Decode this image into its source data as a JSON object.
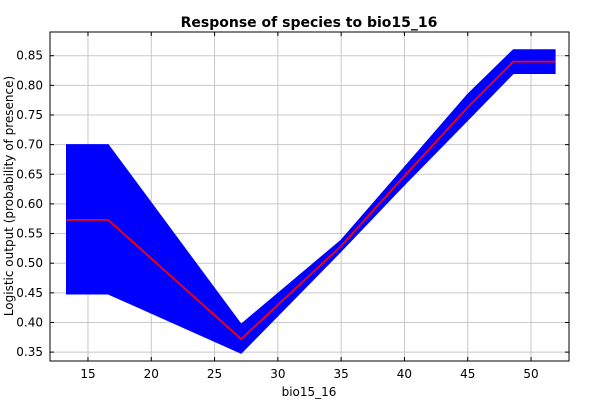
{
  "chart_data": {
    "type": "line",
    "title": "Response of species to bio15_16",
    "xlabel": "bio15_16",
    "ylabel": "Logistic output (probability of presence)",
    "xlim": [
      12,
      53
    ],
    "ylim": [
      0.335,
      0.89
    ],
    "xticks": [
      15,
      20,
      25,
      30,
      35,
      40,
      45,
      50
    ],
    "yticks": [
      0.35,
      0.4,
      0.45,
      0.5,
      0.55,
      0.6,
      0.65,
      0.7,
      0.75,
      0.8,
      0.85
    ],
    "ytick_labels": [
      "0.35",
      "0.40",
      "0.45",
      "0.50",
      "0.55",
      "0.60",
      "0.65",
      "0.70",
      "0.75",
      "0.80",
      "0.85"
    ],
    "grid": true,
    "band_color": "#0000ff",
    "line_color": "#ff0000",
    "series": [
      {
        "role": "mean",
        "x": [
          13.3,
          16.6,
          27.1,
          35,
          40,
          45,
          48.6,
          51.9
        ],
        "y": [
          0.573,
          0.573,
          0.372,
          0.529,
          0.647,
          0.763,
          0.84,
          0.84
        ]
      },
      {
        "role": "upper",
        "x": [
          13.3,
          16.6,
          27.1,
          35,
          40,
          45,
          48.6,
          51.9
        ],
        "y": [
          0.7,
          0.7,
          0.397,
          0.539,
          0.662,
          0.785,
          0.86,
          0.86
        ]
      },
      {
        "role": "lower",
        "x": [
          13.3,
          16.6,
          27.1,
          35,
          40,
          45,
          48.6,
          51.9
        ],
        "y": [
          0.448,
          0.448,
          0.348,
          0.52,
          0.632,
          0.741,
          0.82,
          0.82
        ]
      }
    ]
  }
}
